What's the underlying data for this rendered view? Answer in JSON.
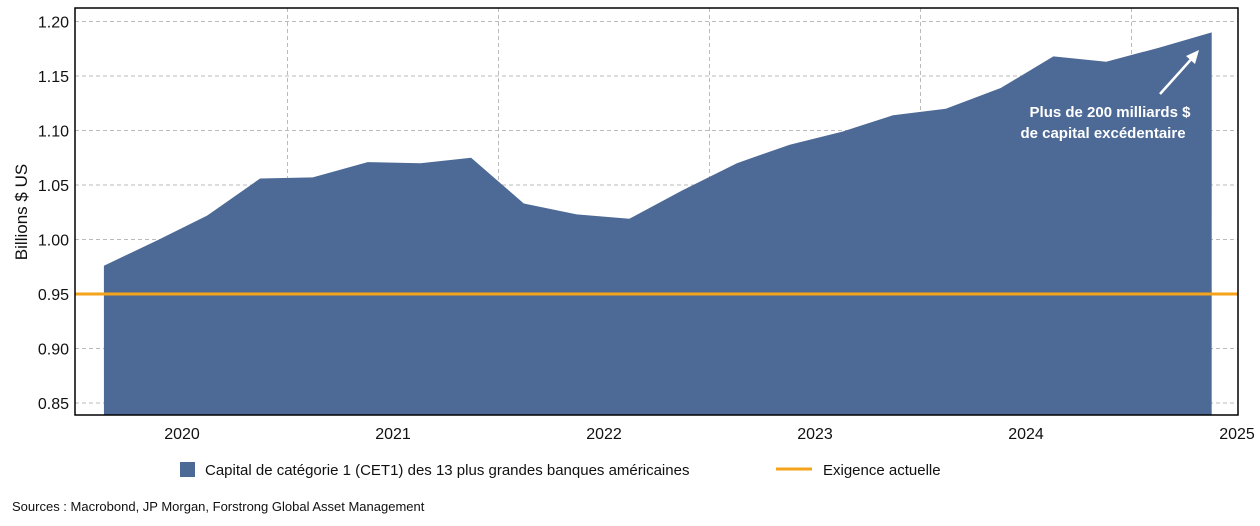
{
  "chart_data": {
    "type": "area",
    "ylabel": "Billions $ US",
    "ylim": [
      0.84,
      1.21
    ],
    "yticks": [
      "0.85",
      "0.90",
      "0.95",
      "1.00",
      "1.05",
      "1.10",
      "1.15",
      "1.20"
    ],
    "xticks": [
      "2020",
      "2021",
      "2022",
      "2023",
      "2024",
      "2025"
    ],
    "grid": true,
    "legend_placement": "bottom",
    "series": [
      {
        "name": "Capital de catégorie 1 (CET1) des 13 plus grandes banques américaines",
        "color": "#4d6a96",
        "x": [
          2019.63,
          2019.88,
          2020.12,
          2020.37,
          2020.62,
          2020.88,
          2021.13,
          2021.37,
          2021.62,
          2021.87,
          2022.12,
          2022.37,
          2022.63,
          2022.88,
          2023.13,
          2023.37,
          2023.62,
          2023.88,
          2024.13,
          2024.38,
          2024.63,
          2024.88
        ],
        "values": [
          0.976,
          0.999,
          1.022,
          1.056,
          1.057,
          1.071,
          1.07,
          1.075,
          1.033,
          1.023,
          1.019,
          1.045,
          1.07,
          1.087,
          1.099,
          1.114,
          1.12,
          1.139,
          1.168,
          1.163,
          1.176,
          1.19
        ]
      }
    ],
    "reference_line": {
      "name": "Exigence actuelle",
      "value": 0.95,
      "color": "#f5a31a"
    },
    "annotation": {
      "line1": "Plus de 200 milliards $",
      "line2": "de capital excédentaire"
    }
  },
  "source": "Sources : Macrobond, JP Morgan, Forstrong Global Asset Management"
}
